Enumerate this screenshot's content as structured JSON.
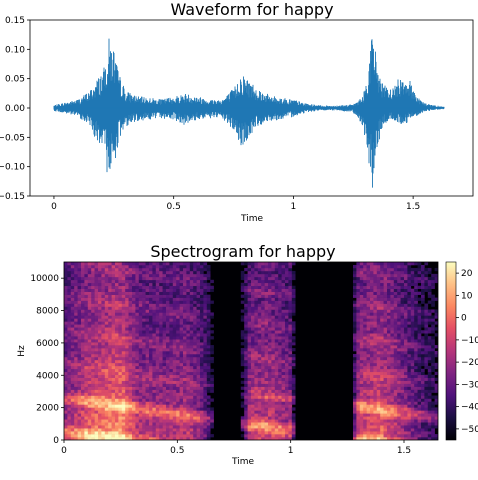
{
  "chart_data": [
    {
      "type": "line",
      "title": "Waveform for happy",
      "xlabel": "Time",
      "ylabel": "",
      "xlim": [
        -0.1,
        1.75
      ],
      "ylim": [
        -0.15,
        0.15
      ],
      "xticks": [
        0,
        0.5,
        1,
        1.5
      ],
      "xtick_labels": [
        "0",
        "0.5",
        "1",
        "1.5"
      ],
      "yticks": [
        -0.15,
        -0.1,
        -0.05,
        0.0,
        0.05,
        0.1,
        0.15
      ],
      "ytick_labels": [
        "−0.15",
        "−0.10",
        "−0.05",
        "0.00",
        "0.05",
        "0.10",
        "0.15"
      ],
      "series": [
        {
          "color": "#1f77b4",
          "envelope": {
            "t": [
              0.0,
              0.05,
              0.1,
              0.15,
              0.18,
              0.21,
              0.23,
              0.25,
              0.27,
              0.3,
              0.35,
              0.4,
              0.45,
              0.5,
              0.55,
              0.6,
              0.65,
              0.7,
              0.73,
              0.76,
              0.78,
              0.8,
              0.85,
              0.9,
              0.95,
              1.0,
              1.05,
              1.1,
              1.15,
              1.2,
              1.25,
              1.29,
              1.31,
              1.33,
              1.35,
              1.37,
              1.4,
              1.43,
              1.46,
              1.49,
              1.52,
              1.55,
              1.6,
              1.63
            ],
            "upper": [
              0.005,
              0.01,
              0.015,
              0.03,
              0.05,
              0.07,
              0.12,
              0.105,
              0.06,
              0.03,
              0.02,
              0.018,
              0.015,
              0.02,
              0.025,
              0.02,
              0.015,
              0.015,
              0.025,
              0.04,
              0.06,
              0.055,
              0.035,
              0.022,
              0.018,
              0.015,
              0.008,
              0.005,
              0.004,
              0.005,
              0.006,
              0.02,
              0.06,
              0.135,
              0.08,
              0.045,
              0.03,
              0.045,
              0.062,
              0.045,
              0.02,
              0.008,
              0.004,
              0.002
            ],
            "lower": [
              -0.005,
              -0.01,
              -0.015,
              -0.03,
              -0.06,
              -0.09,
              -0.125,
              -0.1,
              -0.06,
              -0.032,
              -0.022,
              -0.02,
              -0.018,
              -0.02,
              -0.03,
              -0.02,
              -0.018,
              -0.018,
              -0.03,
              -0.045,
              -0.07,
              -0.06,
              -0.032,
              -0.022,
              -0.02,
              -0.015,
              -0.008,
              -0.005,
              -0.004,
              -0.005,
              -0.008,
              -0.03,
              -0.08,
              -0.14,
              -0.08,
              -0.035,
              -0.02,
              -0.025,
              -0.03,
              -0.02,
              -0.012,
              -0.006,
              -0.003,
              -0.002
            ]
          }
        }
      ]
    },
    {
      "type": "heatmap",
      "title": "Spectrogram for happy",
      "xlabel": "Time",
      "ylabel": "Hz",
      "xlim": [
        0,
        1.65
      ],
      "ylim": [
        0,
        11000
      ],
      "xticks": [
        0,
        0.5,
        1,
        1.5
      ],
      "xtick_labels": [
        "0",
        "0.5",
        "1",
        "1.5"
      ],
      "yticks": [
        0,
        2000,
        4000,
        6000,
        8000,
        10000
      ],
      "ytick_labels": [
        "0",
        "2000",
        "4000",
        "6000",
        "8000",
        "10000"
      ],
      "colormap": "magma",
      "colorbar": {
        "range": [
          -55,
          25
        ],
        "ticks": [
          20,
          10,
          0,
          -10,
          -20,
          -30,
          -40,
          -50
        ],
        "tick_labels": [
          "20",
          "10",
          "0",
          "−10",
          "−20",
          "−30",
          "−40",
          "−50"
        ]
      },
      "dark_regions": [
        [
          0.66,
          0.78
        ],
        [
          1.02,
          1.27
        ]
      ]
    }
  ]
}
